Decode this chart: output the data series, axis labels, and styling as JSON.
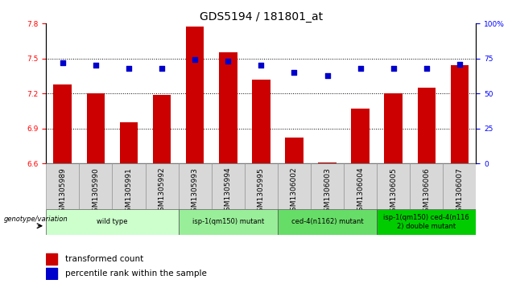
{
  "title": "GDS5194 / 181801_at",
  "samples": [
    "GSM1305989",
    "GSM1305990",
    "GSM1305991",
    "GSM1305992",
    "GSM1305993",
    "GSM1305994",
    "GSM1305995",
    "GSM1306002",
    "GSM1306003",
    "GSM1306004",
    "GSM1306005",
    "GSM1306006",
    "GSM1306007"
  ],
  "bar_values": [
    7.28,
    7.2,
    6.95,
    7.19,
    7.77,
    7.55,
    7.32,
    6.82,
    6.61,
    7.07,
    7.2,
    7.25,
    7.44
  ],
  "percentile_values": [
    72,
    70,
    68,
    68,
    74,
    73,
    70,
    65,
    63,
    68,
    68,
    68,
    71
  ],
  "bar_color": "#cc0000",
  "percentile_color": "#0000cc",
  "ylim_left": [
    6.6,
    7.8
  ],
  "ylim_right": [
    0,
    100
  ],
  "yticks_left": [
    6.6,
    6.9,
    7.2,
    7.5,
    7.8
  ],
  "yticks_right": [
    0,
    25,
    50,
    75,
    100
  ],
  "grid_lines": [
    7.5,
    7.2,
    6.9
  ],
  "groups": [
    {
      "label": "wild type",
      "start": 0,
      "end": 3,
      "color": "#ccffcc"
    },
    {
      "label": "isp-1(qm150) mutant",
      "start": 4,
      "end": 6,
      "color": "#99ee99"
    },
    {
      "label": "ced-4(n1162) mutant",
      "start": 7,
      "end": 9,
      "color": "#66dd66"
    },
    {
      "label": "isp-1(qm150) ced-4(n116\n2) double mutant",
      "start": 10,
      "end": 12,
      "color": "#00cc00"
    }
  ],
  "genotype_label": "genotype/variation",
  "legend_bar_label": "transformed count",
  "legend_pct_label": "percentile rank within the sample",
  "background_color": "#ffffff",
  "plot_bg_color": "#ffffff",
  "title_fontsize": 10,
  "tick_fontsize": 6.5,
  "label_fontsize": 7
}
